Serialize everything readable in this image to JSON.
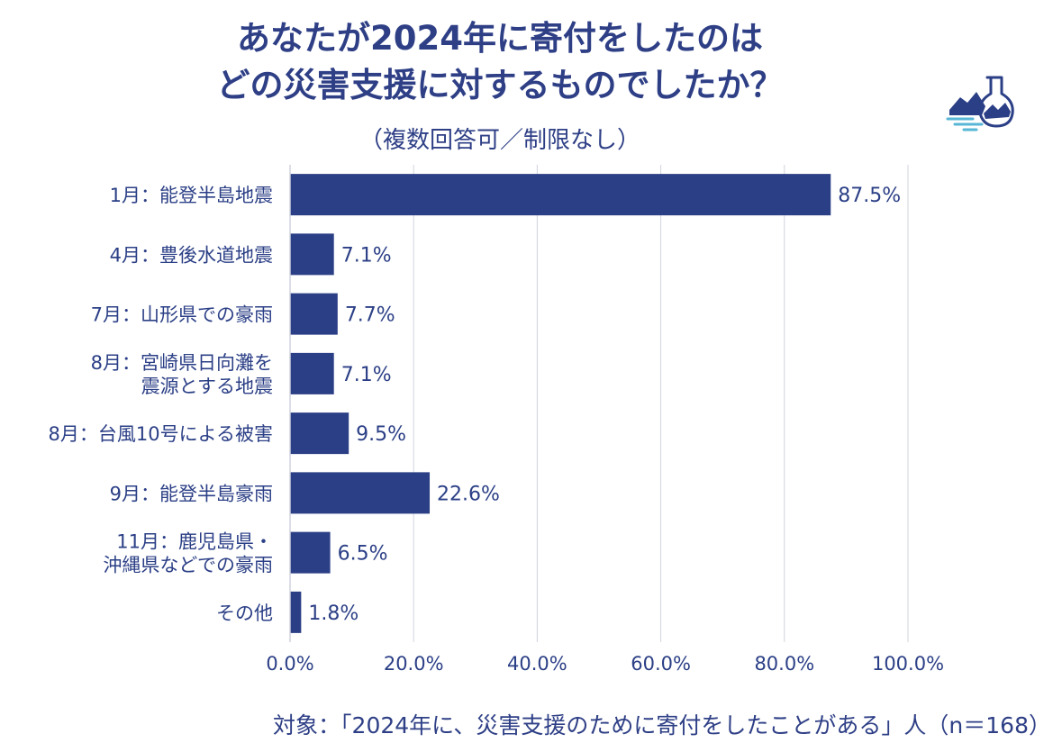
{
  "title_line1": "あなたが2024年に寄付をしたのは",
  "title_line2": "どの災害支援に対するものでしたか？",
  "subtitle": "（複数回答可／制限なし）",
  "footnote": "対象：「2024年に、災害支援のために寄付をしたことがある」人（n＝168）",
  "colors": {
    "bar": "#2b3f86",
    "text": "#2b3f86",
    "grid": "#d0d4de"
  },
  "logo_icon": "flask-mountain-icon",
  "chart_data": {
    "type": "bar",
    "orientation": "horizontal",
    "categories": [
      [
        "1月：能登半島地震"
      ],
      [
        "4月：豊後水道地震"
      ],
      [
        "7月：山形県での豪雨"
      ],
      [
        "8月：宮崎県日向灘を",
        "震源とする地震"
      ],
      [
        "8月：台風10号による被害"
      ],
      [
        "9月：能登半島豪雨"
      ],
      [
        "11月：鹿児島県・",
        "沖縄県などでの豪雨"
      ],
      [
        "その他"
      ]
    ],
    "values": [
      87.5,
      7.1,
      7.7,
      7.1,
      9.5,
      22.6,
      6.5,
      1.8
    ],
    "value_labels": [
      "87.5%",
      "7.1%",
      "7.7%",
      "7.1%",
      "9.5%",
      "22.6%",
      "6.5%",
      "1.8%"
    ],
    "xlim": [
      0,
      100
    ],
    "xticks": [
      0,
      20,
      40,
      60,
      80,
      100
    ],
    "xtick_labels": [
      "0.0%",
      "20.0%",
      "40.0%",
      "60.0%",
      "80.0%",
      "100.0%"
    ],
    "grid": "vertical"
  }
}
